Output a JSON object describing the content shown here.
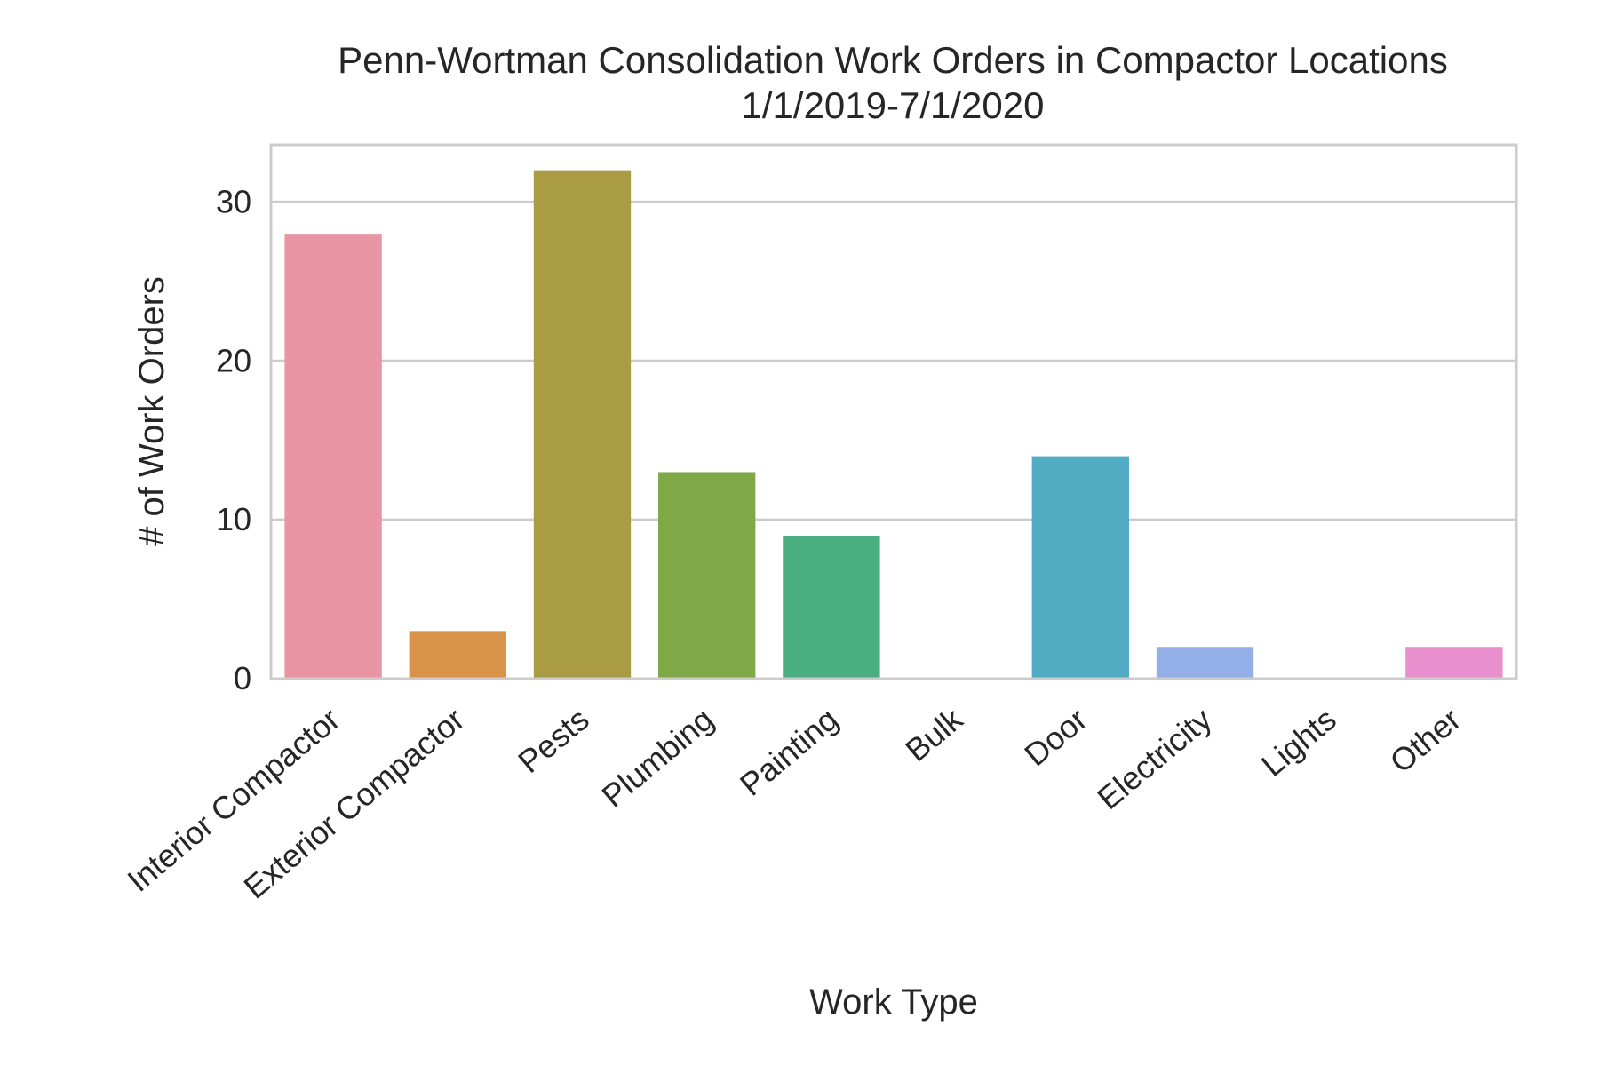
{
  "chart_data": {
    "type": "bar",
    "title": "Penn-Wortman Consolidation Work Orders in Compactor Locations",
    "subtitle": "1/1/2019-7/1/2020",
    "xlabel": "Work Type",
    "ylabel": "# of Work Orders",
    "categories": [
      "Interior Compactor",
      "Exterior Compactor",
      "Pests",
      "Plumbing",
      "Painting",
      "Bulk",
      "Door",
      "Electricity",
      "Lights",
      "Other"
    ],
    "values": [
      28,
      3,
      32,
      13,
      9,
      0,
      14,
      2,
      0,
      2
    ],
    "colors": [
      "#e995a3",
      "#da934a",
      "#a99c45",
      "#7fa847",
      "#4aae80",
      "#49ab98",
      "#51acc4",
      "#94aee8",
      "#c69ee6",
      "#e890cd"
    ],
    "ylim": [
      0,
      33.6
    ],
    "yticks": [
      0,
      10,
      20,
      30
    ],
    "grid": true,
    "legend": "none"
  }
}
